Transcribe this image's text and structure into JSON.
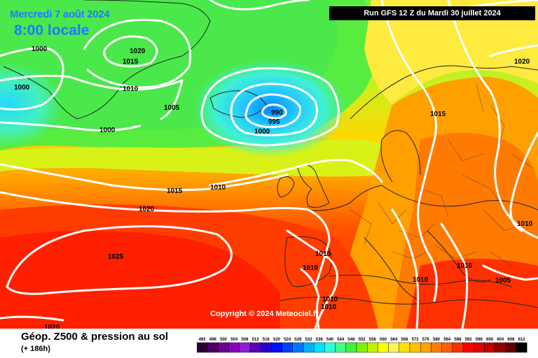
{
  "header": {
    "date": "Mercredi 7 août 2024",
    "local_time": "8:00 locale",
    "run_info": "Run GFS 12 Z du Mardi 30 juillet 2024"
  },
  "copyright": "Copyright © 2024 Meteociel.fr",
  "footer": {
    "fields": "Géop. Z500 & pression au sol",
    "lead_time": "(+ 186h)"
  },
  "isobar_labels": [
    {
      "id": "iso-1000-a",
      "text": "1000"
    },
    {
      "id": "iso-1020-a",
      "text": "1020"
    },
    {
      "id": "iso-1015-a",
      "text": "1015"
    },
    {
      "id": "iso-1000-b",
      "text": "1000"
    },
    {
      "id": "iso-1010-a",
      "text": "1010"
    },
    {
      "id": "iso-1005-a",
      "text": "1005"
    },
    {
      "id": "iso-1000-c",
      "text": "1000"
    },
    {
      "id": "iso-990",
      "text": "990"
    },
    {
      "id": "iso-995",
      "text": "995"
    },
    {
      "id": "iso-1000-d",
      "text": "1000"
    },
    {
      "id": "iso-1015-b",
      "text": "1015"
    },
    {
      "id": "iso-1010-b",
      "text": "1010"
    },
    {
      "id": "iso-1020-b",
      "text": "1020"
    },
    {
      "id": "iso-1025",
      "text": "1025"
    },
    {
      "id": "iso-1015-c",
      "text": "1015"
    },
    {
      "id": "iso-1010-c",
      "text": "1010"
    },
    {
      "id": "iso-1010-d",
      "text": "1010"
    },
    {
      "id": "iso-1010-e",
      "text": "1010"
    },
    {
      "id": "iso-1010-f",
      "text": "1010"
    },
    {
      "id": "iso-1010-g",
      "text": "1010"
    },
    {
      "id": "iso-1005-b",
      "text": "1005"
    },
    {
      "id": "iso-1010-h",
      "text": "1010"
    },
    {
      "id": "iso-1020-c",
      "text": "1020"
    },
    {
      "id": "iso-1015-d",
      "text": "1015"
    },
    {
      "id": "iso-1020-d",
      "text": "1020"
    }
  ],
  "legend": {
    "values": [
      "492",
      "496",
      "500",
      "504",
      "508",
      "512",
      "516",
      "520",
      "524",
      "528",
      "532",
      "536",
      "540",
      "544",
      "548",
      "552",
      "556",
      "560",
      "564",
      "568",
      "572",
      "576",
      "580",
      "584",
      "588",
      "592",
      "596",
      "600",
      "604",
      "608",
      "612"
    ],
    "colors": [
      "#2b0032",
      "#4a0060",
      "#6a0090",
      "#8a00c0",
      "#8f1fd6",
      "#5b00b8",
      "#2a00d0",
      "#0010ff",
      "#0040ff",
      "#0078ff",
      "#00b0ff",
      "#00e0ff",
      "#30ffd8",
      "#40ff90",
      "#40f040",
      "#80f000",
      "#c0f000",
      "#ffff00",
      "#fff060",
      "#ffe000",
      "#ffc000",
      "#ffa000",
      "#ff8000",
      "#ff6000",
      "#ff3000",
      "#ff0000",
      "#e00000",
      "#c00000",
      "#900000",
      "#600000",
      "#000000"
    ]
  }
}
